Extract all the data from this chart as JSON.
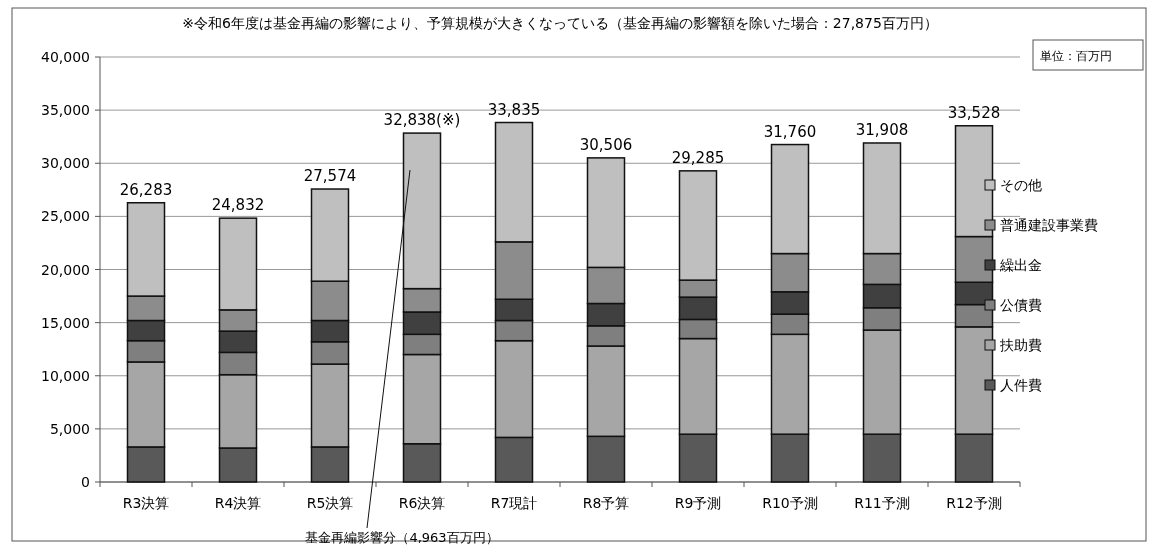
{
  "chart_data": {
    "type": "bar",
    "stacked": true,
    "title": "※令和6年度は基金再編の影響により、予算規模が大きくなっている（基金再編の影響額を除いた場合：27,875百万円）",
    "categories": [
      "R3決算",
      "R4決算",
      "R5決算",
      "R6決算",
      "R7現計",
      "R8予算",
      "R9予測",
      "R10予測",
      "R11予測",
      "R12予測"
    ],
    "series": [
      {
        "name": "人件費",
        "color": "#595959",
        "values": [
          3300,
          3200,
          3300,
          3600,
          4200,
          4300,
          4500,
          4500,
          4500,
          4500
        ]
      },
      {
        "name": "扶助費",
        "color": "#a6a6a6",
        "values": [
          8000,
          6900,
          7800,
          8400,
          9100,
          8500,
          9000,
          9400,
          9800,
          10100
        ]
      },
      {
        "name": "公債費",
        "color": "#7f7f7f",
        "values": [
          2000,
          2100,
          2100,
          1900,
          1900,
          1900,
          1800,
          1900,
          2100,
          2100
        ]
      },
      {
        "name": "繰出金",
        "color": "#404040",
        "values": [
          1900,
          2000,
          2000,
          2100,
          2000,
          2100,
          2100,
          2100,
          2200,
          2100
        ]
      },
      {
        "name": "普通建設事業費",
        "color": "#8c8c8c",
        "values": [
          2300,
          2000,
          3700,
          2200,
          5400,
          3400,
          1600,
          3600,
          2900,
          4300
        ]
      },
      {
        "name": "その他",
        "color": "#bfbfbf",
        "values": [
          8783,
          8632,
          8674,
          14638,
          11235,
          10306,
          10285,
          10260,
          10408,
          10428
        ]
      }
    ],
    "totals": [
      "26,283",
      "24,832",
      "27,574",
      "32,838(※)",
      "33,835",
      "30,506",
      "29,285",
      "31,760",
      "31,908",
      "33,528"
    ],
    "ylim": [
      0,
      40000
    ],
    "yticks": [
      {
        "value": 0,
        "label": "0"
      },
      {
        "value": 5000,
        "label": "5,000"
      },
      {
        "value": 10000,
        "label": "10,000"
      },
      {
        "value": 15000,
        "label": "15,000"
      },
      {
        "value": 20000,
        "label": "20,000"
      },
      {
        "value": 25000,
        "label": "25,000"
      },
      {
        "value": 30000,
        "label": "30,000"
      },
      {
        "value": 35000,
        "label": "35,000"
      },
      {
        "value": 40000,
        "label": "40,000"
      }
    ],
    "grid": "y",
    "legend": "right",
    "annotations": [
      "単位：百万円",
      "基金再編影響分（4,963百万円）"
    ]
  }
}
